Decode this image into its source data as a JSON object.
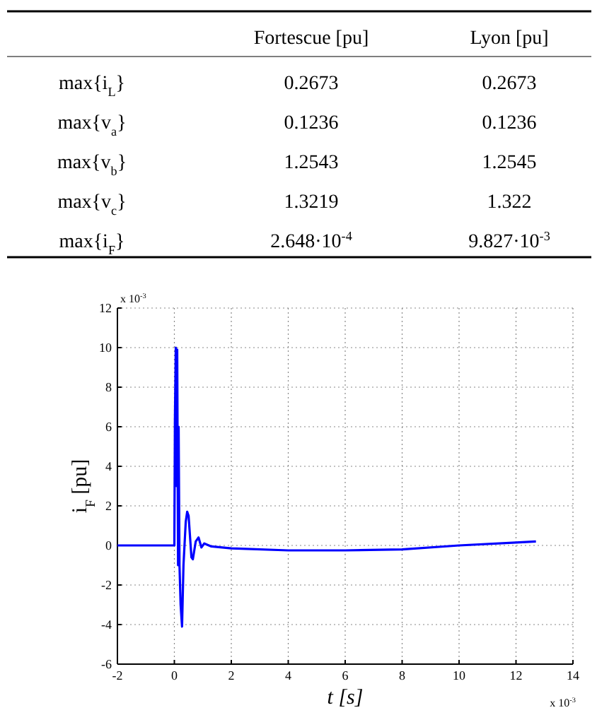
{
  "chart_data": [
    {
      "type": "other",
      "categories": [
        "Fortescue [pu]",
        "Lyon [pu]"
      ],
      "y_categories": [
        "max{i$_{L}$}",
        "max{v$_{a}$}",
        "max{v$_{b}$}",
        "max{v$_{c}$}",
        "max{i$_{F}$}"
      ],
      "cell_labels": [
        [
          "0.2673",
          "0.2673"
        ],
        [
          "0.1236",
          "0.1236"
        ],
        [
          "1.2543",
          "1.2545"
        ],
        [
          "1.3219",
          "1.322"
        ],
        [
          "2.648·10$^{-4}$",
          "9.827·10$^{-3}$"
        ]
      ]
    },
    {
      "type": "line",
      "xlabel": "t  [s]",
      "ylabel": "i$_{F}$  [pu]",
      "xlim": [
        -2,
        14
      ],
      "ylim": [
        -6,
        12
      ],
      "xticks": [
        -2,
        0,
        2,
        4,
        6,
        8,
        10,
        12,
        14
      ],
      "yticks": [
        -6,
        -4,
        -2,
        0,
        2,
        4,
        6,
        8,
        10,
        12
      ],
      "grid": true,
      "line_style": "solid",
      "annotations": [
        "x 10$^{-3}$",
        "x 10$^{-3}$"
      ],
      "series": [
        {
          "color": "#0000ff",
          "x": [
            -2,
            0,
            0.02,
            0.05,
            0.08,
            0.1,
            0.13,
            0.15,
            0.18,
            0.22,
            0.27,
            0.32,
            0.4,
            0.45,
            0.5,
            0.6,
            0.65,
            0.75,
            0.85,
            0.95,
            1.05,
            1.3,
            2,
            4,
            6,
            8,
            10,
            12,
            12.7
          ],
          "values": [
            0,
            0,
            6.4,
            10,
            3,
            9.9,
            -1,
            6,
            -1,
            -3,
            -4.1,
            -1,
            1.2,
            1.7,
            1.5,
            -0.6,
            -0.7,
            0.2,
            0.4,
            -0.1,
            0.1,
            -0.05,
            -0.15,
            -0.25,
            -0.25,
            -0.2,
            0,
            0.15,
            0.2
          ]
        }
      ]
    }
  ]
}
